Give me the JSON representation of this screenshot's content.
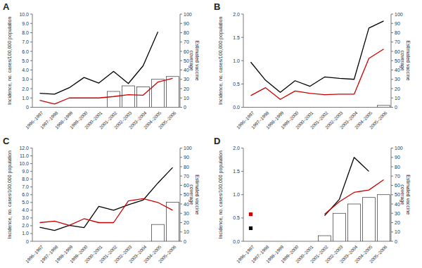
{
  "chart_data": [
    {
      "type": "line",
      "title": "A",
      "categories": [
        "1996–1997",
        "1997–1998",
        "1998–1999",
        "1999–2000",
        "2000–2001",
        "2001–2002",
        "2002–2003",
        "2003–2004",
        "2004–2005",
        "2005–2006"
      ],
      "y_label": "Incidence, no. cases/100,000 population",
      "y2_label": "Estimated vaccine\ncoverage",
      "ylim": [
        0,
        10.0
      ],
      "yticks": [
        0,
        {
          "value": 1.0,
          "label": "1.0"
        },
        {
          "value": 2.0,
          "label": "2.0"
        },
        {
          "value": 3.0,
          "label": "3.0"
        },
        {
          "value": 4.0,
          "label": "4.0"
        },
        {
          "value": 5.0,
          "label": "5.0"
        },
        {
          "value": 6.0,
          "label": "6.0"
        },
        {
          "value": 7.0,
          "label": "7.0"
        },
        {
          "value": 8.0,
          "label": "8.0"
        },
        {
          "value": 9.0,
          "label": "9.0"
        },
        {
          "value": 10.0,
          "label": "10.0"
        }
      ],
      "y2lim": [
        0,
        100
      ],
      "y2ticks": [
        0,
        10,
        20,
        30,
        40,
        50,
        60,
        70,
        80,
        90,
        100
      ],
      "series": [
        {
          "type": "bar",
          "axis": "y2",
          "color": "white",
          "values": [
            null,
            null,
            null,
            null,
            null,
            17,
            23,
            22,
            30,
            33
          ]
        },
        {
          "type": "line",
          "color": "#000000",
          "values": [
            1.5,
            1.4,
            2.1,
            3.2,
            2.6,
            3.85,
            2.55,
            4.45,
            8.1,
            null
          ]
        },
        {
          "type": "line",
          "color": "#cc0000",
          "values": [
            0.75,
            0.35,
            1.0,
            1.0,
            1.0,
            1.15,
            1.35,
            1.3,
            2.7,
            3.1
          ]
        }
      ]
    },
    {
      "type": "line",
      "title": "B",
      "categories": [
        "1996–1997",
        "1997–1998",
        "1998–1999",
        "1999–2000",
        "2000–2001",
        "2001–2002",
        "2002–2003",
        "2003–2004",
        "2004–2005",
        "2005–2006"
      ],
      "y_label": "Incidence, no. cases/100,000 population",
      "y2_label": "Estimated vaccine\ncoverage",
      "ylim": [
        0,
        2.0
      ],
      "yticks": [
        {
          "value": 0.0,
          "label": "0.0"
        },
        0.5,
        {
          "value": 1.0,
          "label": "1.0"
        },
        1.5,
        {
          "value": 2.0,
          "label": "2.0"
        }
      ],
      "y2lim": [
        0,
        100
      ],
      "y2ticks": [
        0,
        10,
        20,
        30,
        40,
        50,
        60,
        70,
        80,
        90,
        100
      ],
      "series": [
        {
          "type": "bar",
          "axis": "y2",
          "color": "white",
          "values": [
            null,
            null,
            null,
            null,
            null,
            null,
            null,
            null,
            null,
            2
          ]
        },
        {
          "type": "line",
          "color": "#000000",
          "values": [
            0.97,
            0.58,
            0.32,
            0.57,
            0.45,
            0.65,
            0.62,
            0.6,
            1.7,
            1.85
          ]
        },
        {
          "type": "line",
          "color": "#cc0000",
          "values": [
            0.25,
            0.42,
            0.17,
            0.35,
            0.3,
            0.27,
            0.28,
            0.28,
            1.05,
            1.25
          ]
        }
      ]
    },
    {
      "type": "line",
      "title": "C",
      "categories": [
        "1996–1997",
        "1997–1998",
        "1998–1999",
        "1999–2000",
        "2000–2001",
        "2001–2002",
        "2002–2003",
        "2003–2004",
        "2004–2005",
        "2005–2006"
      ],
      "y_label": "Incidence, no. cases/100,000 population",
      "y2_label": "Estimated vaccine\ncoverage",
      "ylim": [
        0,
        12.0
      ],
      "yticks": [
        0,
        {
          "value": 1.0,
          "label": "1.0"
        },
        {
          "value": 2.0,
          "label": "2.0"
        },
        {
          "value": 3.0,
          "label": "3.0"
        },
        {
          "value": 4.0,
          "label": "4.0"
        },
        {
          "value": 5.0,
          "label": "5.0"
        },
        {
          "value": 6.0,
          "label": "6.0"
        },
        {
          "value": 7.0,
          "label": "7.0"
        },
        {
          "value": 8.0,
          "label": "8.0"
        },
        {
          "value": 9.0,
          "label": "9.0"
        },
        {
          "value": 10.0,
          "label": "10.0"
        },
        {
          "value": 11.0,
          "label": "11.0"
        },
        {
          "value": 12.0,
          "label": "12.0"
        }
      ],
      "y2lim": [
        0,
        100
      ],
      "y2ticks": [
        0,
        10,
        20,
        30,
        40,
        50,
        60,
        70,
        80,
        90,
        100
      ],
      "series": [
        {
          "type": "bar",
          "axis": "y2",
          "color": "white",
          "values": [
            null,
            null,
            null,
            null,
            null,
            null,
            null,
            null,
            18,
            42
          ]
        },
        {
          "type": "line",
          "color": "#000000",
          "values": [
            1.8,
            1.4,
            2.05,
            1.75,
            4.5,
            4.0,
            4.7,
            5.3,
            7.5,
            9.5
          ]
        },
        {
          "type": "line",
          "color": "#cc0000",
          "values": [
            2.4,
            2.6,
            2.05,
            2.9,
            2.4,
            2.4,
            5.2,
            5.5,
            5.0,
            4.0
          ]
        }
      ]
    },
    {
      "type": "line",
      "title": "D",
      "categories": [
        "1996–1997",
        "1997–1998",
        "1998–1999",
        "1999–2000",
        "2000–2001",
        "2001–2002",
        "2002–2003",
        "2003–2004",
        "2004–2005",
        "2005–2006"
      ],
      "y_label": "Incidence, no. cases/100,000 population",
      "y2_label": "Estimated vaccine\ncoverage",
      "ylim": [
        0,
        2.0
      ],
      "yticks": [
        {
          "value": 0.0,
          "label": "0.0"
        },
        0.5,
        {
          "value": 1.0,
          "label": "1.0"
        },
        1.5,
        {
          "value": 2.0,
          "label": "2.0"
        }
      ],
      "y2lim": [
        0,
        100
      ],
      "y2ticks": [
        0,
        10,
        20,
        30,
        40,
        50,
        60,
        70,
        80,
        90,
        100
      ],
      "series": [
        {
          "type": "bar",
          "axis": "y2",
          "color": "white",
          "values": [
            null,
            null,
            null,
            null,
            null,
            6,
            30,
            40,
            47,
            50
          ]
        },
        {
          "type": "line",
          "color": "#000000",
          "values": [
            0.28,
            null,
            null,
            null,
            null,
            0.55,
            0.9,
            1.8,
            1.5,
            null
          ]
        },
        {
          "type": "line",
          "color": "#cc0000",
          "values": [
            0.58,
            null,
            null,
            null,
            null,
            0.58,
            0.85,
            1.05,
            1.1,
            1.32
          ]
        },
        {
          "type": "scatter",
          "marker": "square",
          "color": "#000000",
          "values": [
            0.28,
            null,
            null,
            null,
            null,
            null,
            null,
            null,
            null,
            null
          ]
        },
        {
          "type": "scatter",
          "marker": "square",
          "color": "#cc0000",
          "values": [
            0.58,
            null,
            null,
            null,
            null,
            null,
            null,
            null,
            null,
            null
          ]
        }
      ]
    }
  ]
}
